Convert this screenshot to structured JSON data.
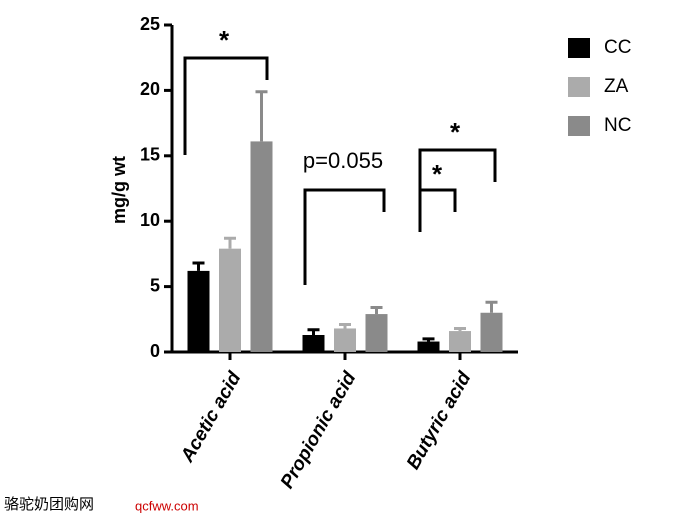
{
  "chart_data": {
    "type": "bar",
    "y_label": "mg/g wt",
    "categories": [
      "Acetic acid",
      "Propionic acid",
      "Butyric acid"
    ],
    "series": [
      {
        "name": "CC",
        "color": "#000000",
        "values": [
          6.2,
          1.3,
          0.8
        ],
        "errors": [
          0.6,
          0.4,
          0.2
        ]
      },
      {
        "name": "ZA",
        "color": "#ababab",
        "values": [
          7.9,
          1.8,
          1.6
        ],
        "errors": [
          0.8,
          0.3,
          0.2
        ]
      },
      {
        "name": "NC",
        "color": "#8a8a8a",
        "values": [
          16.1,
          2.9,
          3.0
        ],
        "errors": [
          3.8,
          0.5,
          0.8
        ]
      }
    ],
    "ylim": [
      0,
      25
    ],
    "yticks": [
      0,
      5,
      10,
      15,
      20,
      25
    ],
    "annotations": [
      "*",
      "p=0.055",
      "*",
      "*"
    ]
  },
  "watermark": {
    "name": "骆驼奶团购网",
    "url": "qcfww.com"
  }
}
